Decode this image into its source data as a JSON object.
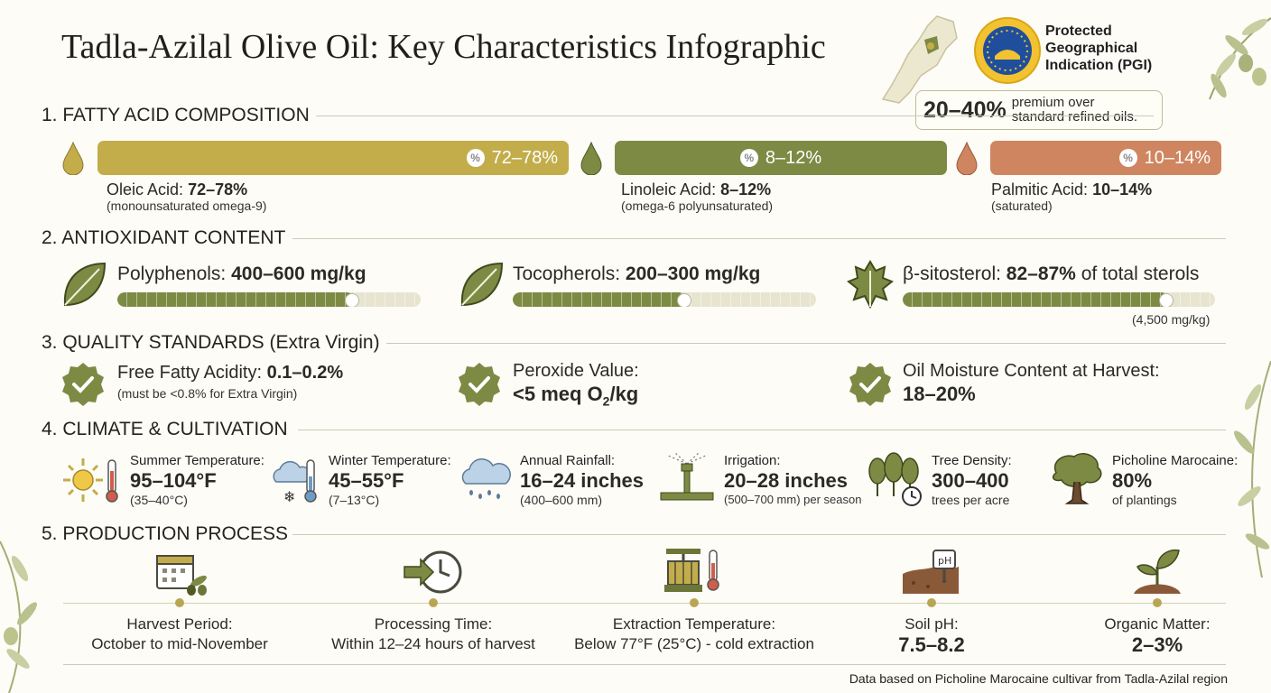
{
  "title": "Tadla-Azilal Olive Oil: Key Characteristics Infographic",
  "pgi": {
    "label": "Protected Geographical Indication (PGI)",
    "label_lines": [
      "Protected",
      "Geographical",
      "Indication (PGI)"
    ],
    "premium_value": "20–40%",
    "premium_lines": [
      "premium over",
      "standard refined oils."
    ]
  },
  "sections": {
    "fatty": "1. FATTY ACID COMPOSITION",
    "antioxidant": "2. ANTIOXIDANT CONTENT",
    "quality": "3. QUALITY STANDARDS (Extra Virgin)",
    "climate": "4. CLIMATE & CULTIVATION",
    "production": "5. PRODUCTION PROCESS"
  },
  "fatty_acids": [
    {
      "name": "Oleic Acid:",
      "range": "72–78%",
      "note": "(monounsaturated omega-9)",
      "color": "#c3ad4b"
    },
    {
      "name": "Linoleic Acid:",
      "range": "8–12%",
      "note": "(omega-6 polyunsaturated)",
      "color": "#7c8a44"
    },
    {
      "name": "Palmitic Acid:",
      "range": "10–14%",
      "note": "(saturated)",
      "color": "#cf8660"
    }
  ],
  "antioxidants": [
    {
      "name": "Polyphenols:",
      "value": "400–600 mg/kg",
      "level": 0.78,
      "extra": ""
    },
    {
      "name": "Tocopherols:",
      "value": "200–300 mg/kg",
      "level": 0.57,
      "extra": ""
    },
    {
      "name": "β-sitosterol:",
      "value": "82–87%",
      "suffix": "of total sterols",
      "level": 0.85,
      "extra": "(4,500 mg/kg)"
    }
  ],
  "quality": [
    {
      "name": "Free Fatty Acidity:",
      "value": "0.1–0.2%",
      "note": "(must be <0.8% for Extra Virgin)"
    },
    {
      "name": "Peroxide Value:",
      "value_main": "<5 meq O",
      "value_sub": "2",
      "value_tail": "/kg",
      "note": ""
    },
    {
      "name": "Oil Moisture Content at Harvest:",
      "value": "18–20%",
      "note": ""
    }
  ],
  "climate": [
    {
      "label": "Summer Temperature:",
      "value": "95–104°F",
      "note": "(35–40°C)",
      "icon": "sun-thermometer-icon"
    },
    {
      "label": "Winter Temperature:",
      "value": "45–55°F",
      "note": "(7–13°C)",
      "icon": "cloud-snow-thermometer-icon"
    },
    {
      "label": "Annual Rainfall:",
      "value": "16–24 inches",
      "note": "(400–600 mm)",
      "icon": "rain-cloud-icon"
    },
    {
      "label": "Irrigation:",
      "value": "20–28 inches",
      "note": "(500–700 mm) per season",
      "icon": "sprinkler-icon"
    },
    {
      "label": "Tree Density:",
      "value": "300–400",
      "note": "trees per acre",
      "icon": "trees-clock-icon"
    },
    {
      "label": "Picholine Marocaine:",
      "value": "80%",
      "note": "of plantings",
      "icon": "olive-tree-icon"
    }
  ],
  "production": [
    {
      "label": "Harvest Period:",
      "value": "October to mid-November",
      "bold": false,
      "icon": "calendar-olive-icon"
    },
    {
      "label": "Processing Time:",
      "value": "Within 12–24 hours of harvest",
      "bold": false,
      "icon": "clock-arrow-icon"
    },
    {
      "label": "Extraction Temperature:",
      "value": "Below 77°F (25°C) - cold extraction",
      "bold": false,
      "icon": "press-thermometer-icon"
    },
    {
      "label": "Soil pH:",
      "value": "7.5–8.2",
      "bold": true,
      "icon": "soil-ph-meter-icon"
    },
    {
      "label": "Organic Matter:",
      "value": "2–3%",
      "bold": true,
      "icon": "seedling-soil-icon"
    }
  ],
  "footer": "Data based on Picholine Marocaine cultivar from Tadla-Azilal region"
}
